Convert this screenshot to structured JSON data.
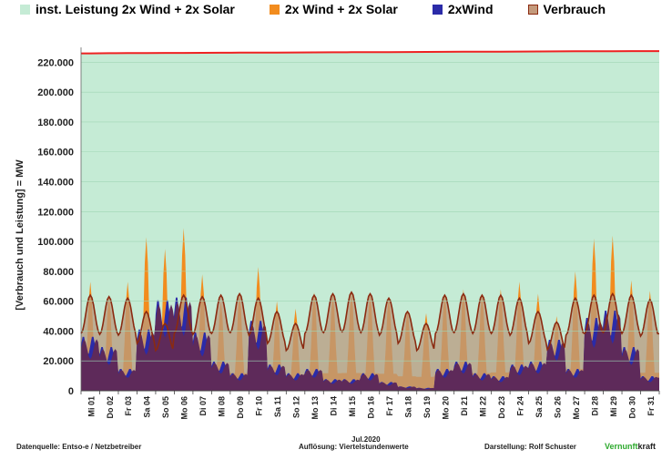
{
  "legend": [
    {
      "label": "inst. Leistung 2x Wind + 2x Solar",
      "color": "#c5ebd5"
    },
    {
      "label": "2x Wind + 2x Solar",
      "color": "#f28c1e"
    },
    {
      "label": "2xWind",
      "color": "#2b2ba8"
    },
    {
      "label": "Verbrauch",
      "color": "#c49a7c"
    }
  ],
  "colors": {
    "installed": "#c5ebd5",
    "installed_line": "#ee2222",
    "solar": "#f28c1e",
    "wind2x": "#2b2ba8",
    "verbrauch_fill": "#b89a7e",
    "verbrauch_line": "#8b2a10",
    "wind": "#5e2a5a"
  },
  "footer": {
    "source": "Datenquelle: Entso-e  / Netzbetreiber",
    "month": "Jul.2020",
    "resolution": "Auflösung: Viertelstundenwerte",
    "author": "Darstellung:  Rolf Schuster",
    "brand_a": "Vernunft",
    "brand_b": "kraft"
  },
  "chart_data": {
    "type": "area",
    "ylabel": "[Verbrauch und Leistung] =  MW",
    "ylim": [
      0,
      230000
    ],
    "yticks": [
      "0",
      "20.000",
      "40.000",
      "60.000",
      "80.000",
      "100.000",
      "120.000",
      "140.000",
      "160.000",
      "180.000",
      "200.000",
      "220.000"
    ],
    "ytick_values": [
      0,
      20000,
      40000,
      60000,
      80000,
      100000,
      120000,
      140000,
      160000,
      180000,
      200000,
      220000
    ],
    "grid": true,
    "legend_position": "top",
    "xlabel": "Jul.2020",
    "categories": [
      "Mi 01",
      "Do 02",
      "Fr 03",
      "Sa 04",
      "So 05",
      "Mo 06",
      "Di 07",
      "Mi 08",
      "Do 09",
      "Fr 10",
      "Sa 11",
      "So 12",
      "Mo 13",
      "Di 14",
      "Mi 15",
      "Do 16",
      "Fr 17",
      "Sa 18",
      "So 19",
      "Mo 20",
      "Di 21",
      "Mi 22",
      "Do 23",
      "Fr 24",
      "Sa 25",
      "So 26",
      "Mo 27",
      "Di 28",
      "Mi 29",
      "Do 30",
      "Fr 31"
    ],
    "installed_capacity_mw": [
      226000,
      227500
    ],
    "series": [
      {
        "name": "inst. Leistung 2x Wind + 2x Solar",
        "values": [
          226000,
          226100,
          226150,
          226200,
          226250,
          226300,
          226350,
          226400,
          226450,
          226500,
          226550,
          226600,
          226650,
          226700,
          226750,
          226800,
          226850,
          226900,
          226950,
          227000,
          227050,
          227100,
          227150,
          227200,
          227250,
          227300,
          227350,
          227400,
          227450,
          227500,
          227500
        ]
      },
      {
        "name": "2x Wind + 2x Solar",
        "values": [
          73000,
          63000,
          73000,
          103000,
          95000,
          109000,
          78000,
          60000,
          65000,
          83000,
          60000,
          55000,
          66000,
          65000,
          66000,
          65000,
          63000,
          54000,
          52000,
          65000,
          68000,
          65000,
          68000,
          73000,
          65000,
          50000,
          80000,
          102000,
          104000,
          74000,
          67000
        ]
      },
      {
        "name": "2xWind",
        "values": [
          37000,
          30000,
          15000,
          42000,
          62000,
          64000,
          40000,
          20000,
          12000,
          48000,
          18000,
          12000,
          15000,
          8000,
          8000,
          12000,
          6000,
          3000,
          2000,
          15000,
          20000,
          12000,
          10000,
          18000,
          20000,
          35000,
          15000,
          50000,
          55000,
          30000,
          10000
        ]
      },
      {
        "name": "Verbrauch",
        "values": [
          64000,
          63000,
          62000,
          53000,
          45000,
          64000,
          63000,
          64000,
          65000,
          62000,
          53000,
          45000,
          64000,
          65000,
          66000,
          65000,
          62000,
          53000,
          45000,
          64000,
          65000,
          64000,
          64000,
          62000,
          53000,
          46000,
          62000,
          64000,
          65000,
          64000,
          61000
        ]
      }
    ]
  }
}
